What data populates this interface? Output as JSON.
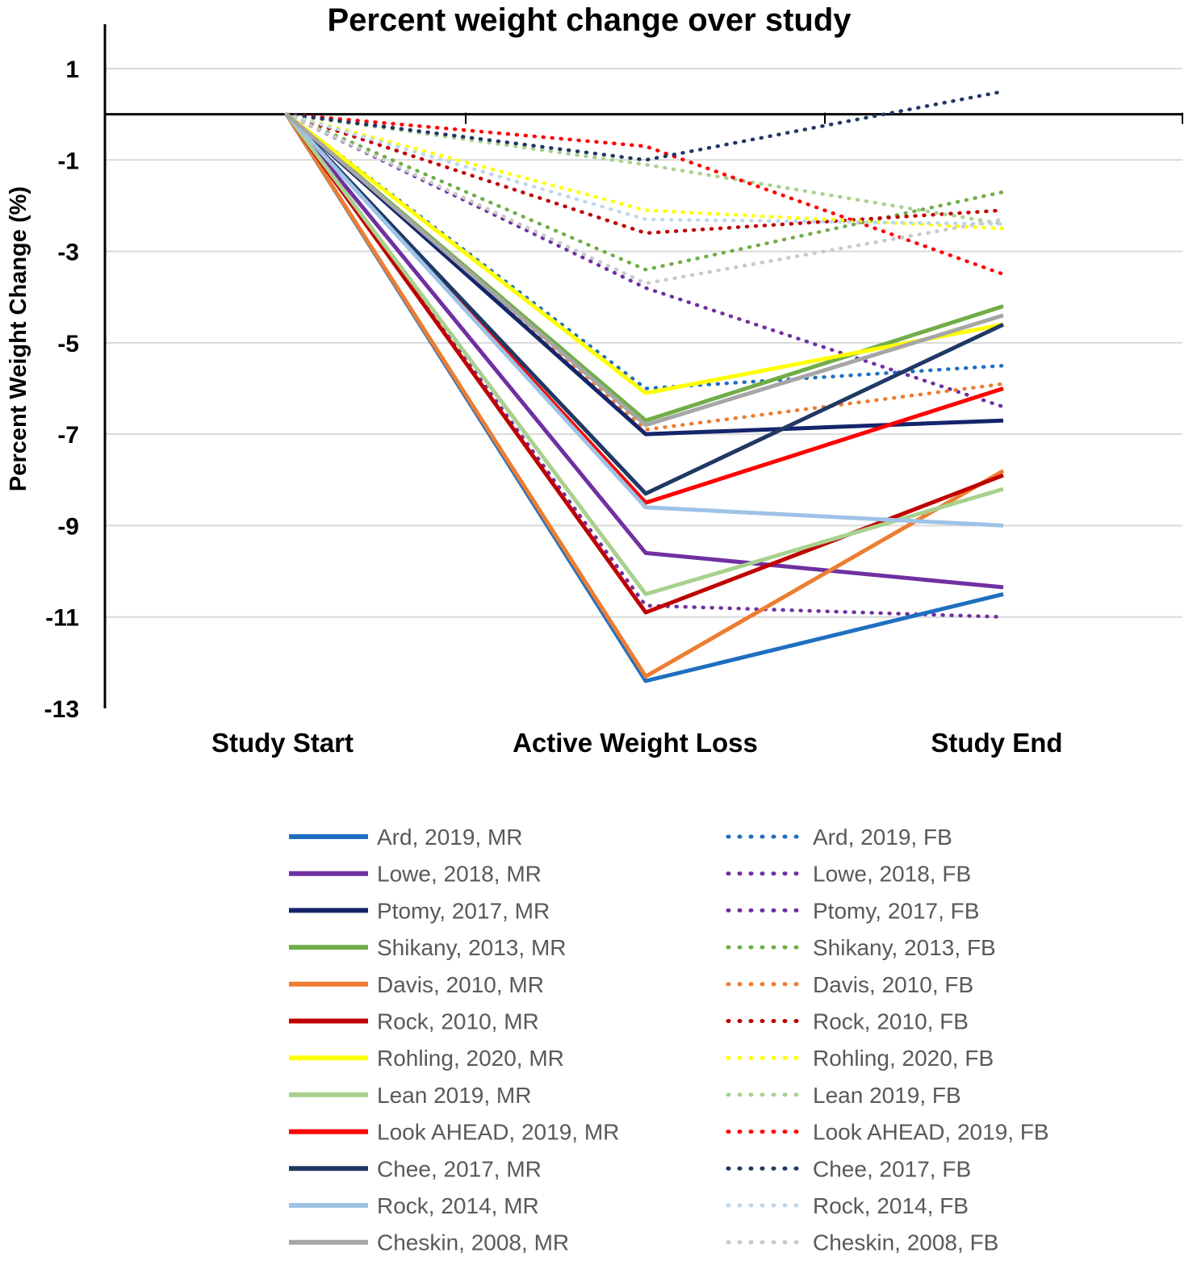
{
  "chart_data": {
    "type": "line",
    "title": "Percent weight change over study",
    "xlabel": "",
    "ylabel": "Percent Weight Change (%)",
    "categories": [
      "Study Start",
      "Active Weight Loss",
      "Study End"
    ],
    "ylim": [
      -13,
      2
    ],
    "yticks": [
      1,
      -1,
      -3,
      -5,
      -7,
      -9,
      -11,
      -13
    ],
    "gridlines": true,
    "legend_position": "bottom",
    "series": [
      {
        "name": "Ard, 2019, MR",
        "style": "solid",
        "color": "#1f6fc0",
        "values": [
          0,
          -12.4,
          -10.5
        ]
      },
      {
        "name": "Lowe, 2018, MR",
        "style": "solid",
        "color": "#7030a0",
        "values": [
          0,
          -9.6,
          -10.35
        ]
      },
      {
        "name": "Ptomy, 2017, MR",
        "style": "solid",
        "color": "#14256b",
        "values": [
          0,
          -7.0,
          -6.7
        ]
      },
      {
        "name": "Shikany, 2013, MR",
        "style": "solid",
        "color": "#70ad47",
        "values": [
          0,
          -6.7,
          -4.2
        ]
      },
      {
        "name": "Davis, 2010, MR",
        "style": "solid",
        "color": "#ed7d31",
        "values": [
          0,
          -12.3,
          -7.8
        ]
      },
      {
        "name": "Rock, 2010, MR",
        "style": "solid",
        "color": "#c00000",
        "values": [
          0,
          -10.9,
          -7.9
        ]
      },
      {
        "name": "Rohling, 2020, MR",
        "style": "solid",
        "color": "#ffff00",
        "values": [
          0,
          -6.1,
          -4.6
        ]
      },
      {
        "name": "Lean 2019, MR",
        "style": "solid",
        "color": "#a9d18e",
        "values": [
          0,
          -10.5,
          -8.2
        ]
      },
      {
        "name": "Look AHEAD, 2019, MR",
        "style": "solid",
        "color": "#ff0000",
        "values": [
          0,
          -8.5,
          -6.0
        ]
      },
      {
        "name": "Chee, 2017, MR",
        "style": "solid",
        "color": "#203864",
        "values": [
          0,
          -8.3,
          -4.6
        ]
      },
      {
        "name": "Rock, 2014, MR",
        "style": "solid",
        "color": "#9dc3e6",
        "values": [
          0,
          -8.6,
          -9.0
        ]
      },
      {
        "name": "Cheskin, 2008, MR",
        "style": "solid",
        "color": "#a6a6a6",
        "values": [
          0,
          -6.8,
          -4.4
        ]
      },
      {
        "name": "Ard, 2019, FB",
        "style": "dotted",
        "color": "#1f6fc0",
        "values": [
          0,
          -6.0,
          -5.5
        ]
      },
      {
        "name": "Lowe, 2018, FB",
        "style": "dotted",
        "color": "#7030a0",
        "values": [
          0,
          -3.8,
          -6.4
        ]
      },
      {
        "name": "Ptomy, 2017, FB",
        "style": "dotted",
        "color": "#7030a0",
        "values": [
          0,
          -10.75,
          -11.0
        ]
      },
      {
        "name": "Shikany, 2013, FB",
        "style": "dotted",
        "color": "#70ad47",
        "values": [
          0,
          -3.4,
          -1.7
        ]
      },
      {
        "name": "Davis, 2010, FB",
        "style": "dotted",
        "color": "#ed7d31",
        "values": [
          0,
          -6.9,
          -5.9
        ]
      },
      {
        "name": "Rock, 2010, FB",
        "style": "dotted",
        "color": "#c00000",
        "values": [
          0,
          -2.6,
          -2.1
        ]
      },
      {
        "name": "Rohling, 2020, FB",
        "style": "dotted",
        "color": "#ffff00",
        "values": [
          0,
          -2.1,
          -2.5
        ]
      },
      {
        "name": "Lean 2019, FB",
        "style": "dotted",
        "color": "#a9d18e",
        "values": [
          0,
          -1.1,
          -2.4
        ]
      },
      {
        "name": "Look AHEAD, 2019, FB",
        "style": "dotted",
        "color": "#ff0000",
        "values": [
          0,
          -0.7,
          -3.5
        ]
      },
      {
        "name": "Chee, 2017, FB",
        "style": "dotted",
        "color": "#203864",
        "values": [
          0,
          -1.0,
          0.5
        ]
      },
      {
        "name": "Rock, 2014, FB",
        "style": "dotted",
        "color": "#bdd7ee",
        "values": [
          0,
          -2.3,
          -2.4
        ]
      },
      {
        "name": "Cheskin, 2008, FB",
        "style": "dotted",
        "color": "#c9c9c9",
        "values": [
          0,
          -3.7,
          -2.3
        ]
      }
    ]
  }
}
